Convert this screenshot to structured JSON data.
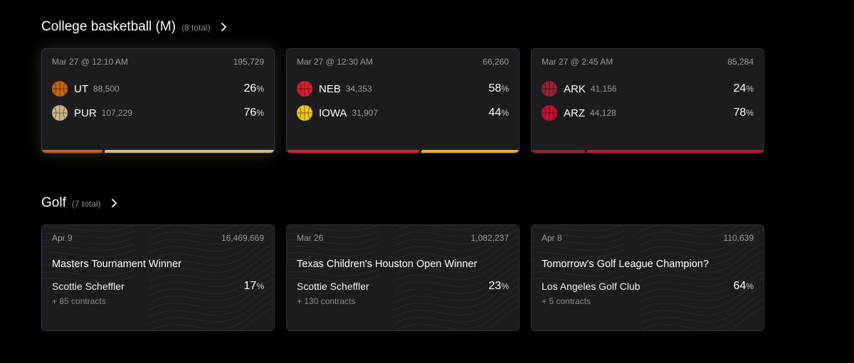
{
  "basketball": {
    "title": "College basketball (M)",
    "count": "(8 total)",
    "cards": [
      {
        "date": "Mar 27 @ 12:10 AM",
        "volume": "195,729",
        "teams": [
          {
            "abbr": "UT",
            "vol": "88,500",
            "pct": "26",
            "color": "#c8640f"
          },
          {
            "abbr": "PUR",
            "vol": "107,229",
            "pct": "76",
            "color": "#cdb787"
          }
        ],
        "bar": {
          "split": 0.26,
          "c1": "#c8640f",
          "c2": "#d4bd8c"
        }
      },
      {
        "date": "Mar 27 @ 12:30 AM",
        "volume": "66,260",
        "teams": [
          {
            "abbr": "NEB",
            "vol": "34,353",
            "pct": "58",
            "color": "#d4202f"
          },
          {
            "abbr": "IOWA",
            "vol": "31,907",
            "pct": "44",
            "color": "#f0c419"
          }
        ],
        "bar": {
          "split": 0.57,
          "c1": "#d4202f",
          "c2": "#f0b416"
        }
      },
      {
        "date": "Mar 27 @ 2:45 AM",
        "volume": "85,284",
        "teams": [
          {
            "abbr": "ARK",
            "vol": "41,156",
            "pct": "24",
            "color": "#9b2230"
          },
          {
            "abbr": "ARZ",
            "vol": "44,128",
            "pct": "78",
            "color": "#c8102e"
          }
        ],
        "bar": {
          "split": 0.23,
          "c1": "#8e2330",
          "c2": "#cc1232"
        }
      }
    ]
  },
  "golf": {
    "title": "Golf",
    "count": "(7 total)",
    "cards": [
      {
        "date": "Apr 9",
        "volume": "16,469,669",
        "title": "Masters Tournament Winner",
        "leader": "Scottie Scheffler",
        "pct": "17",
        "more": "+ 85 contracts"
      },
      {
        "date": "Mar 26",
        "volume": "1,082,237",
        "title": "Texas Children's Houston Open Winner",
        "leader": "Scottie Scheffler",
        "pct": "23",
        "more": "+ 130 contracts"
      },
      {
        "date": "Apr 8",
        "volume": "110,639",
        "title": "Tomorrow's Golf League Champion?",
        "leader": "Los Angeles Golf Club",
        "pct": "64",
        "more": "+ 5 contracts"
      }
    ]
  },
  "percent_sign": "%"
}
